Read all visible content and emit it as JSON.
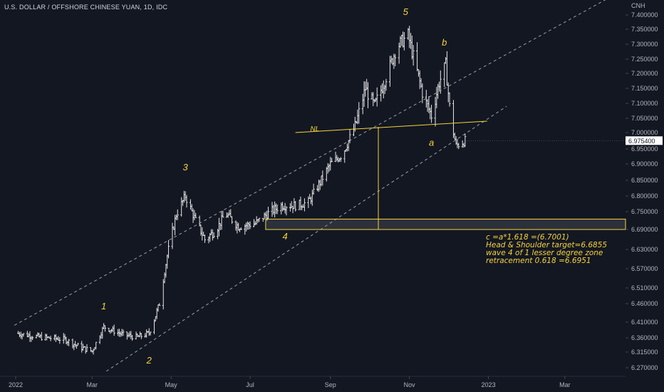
{
  "header": {
    "title": "U.S. DOLLAR / OFFSHORE CHINESE YUAN, 1D, IDC"
  },
  "axis": {
    "currency": "CNH",
    "last_price": "6.975400"
  },
  "colors": {
    "background": "#131722",
    "annotation": "#f5d33b",
    "bars": "#e6e6e6",
    "channel": "#9aa0ab"
  },
  "chart_data": {
    "type": "bar",
    "title": "U.S. DOLLAR / OFFSHORE CHINESE YUAN, 1D, IDC",
    "ylim": [
      6.24,
      7.42
    ],
    "y_ticks": [
      "7.400000",
      "7.350000",
      "7.300000",
      "7.250000",
      "7.200000",
      "7.150000",
      "7.100000",
      "7.050000",
      "7.000000",
      "6.950000",
      "6.900000",
      "6.850000",
      "6.800000",
      "6.750000",
      "6.690000",
      "6.630000",
      "6.570000",
      "6.510000",
      "6.460000",
      "6.410000",
      "6.360000",
      "6.315000",
      "6.270000"
    ],
    "x_ticks": [
      "2022",
      "Mar",
      "May",
      "Jul",
      "Sep",
      "Nov",
      "2023",
      "Mar"
    ],
    "price_path": [
      [
        "2022-01-01",
        6.375
      ],
      [
        "2022-01-20",
        6.362
      ],
      [
        "2022-02-08",
        6.355
      ],
      [
        "2022-02-20",
        6.33
      ],
      [
        "2022-03-01",
        6.318
      ],
      [
        "2022-03-10",
        6.395
      ],
      [
        "2022-03-25",
        6.37
      ],
      [
        "2022-04-05",
        6.362
      ],
      [
        "2022-04-14",
        6.375
      ],
      [
        "2022-04-22",
        6.46
      ],
      [
        "2022-04-28",
        6.61
      ],
      [
        "2022-05-05",
        6.74
      ],
      [
        "2022-05-12",
        6.8
      ],
      [
        "2022-05-20",
        6.72
      ],
      [
        "2022-05-27",
        6.66
      ],
      [
        "2022-06-05",
        6.69
      ],
      [
        "2022-06-12",
        6.745
      ],
      [
        "2022-06-22",
        6.7
      ],
      [
        "2022-07-05",
        6.71
      ],
      [
        "2022-07-15",
        6.745
      ],
      [
        "2022-07-25",
        6.77
      ],
      [
        "2022-08-05",
        6.77
      ],
      [
        "2022-08-15",
        6.78
      ],
      [
        "2022-08-22",
        6.83
      ],
      [
        "2022-09-01",
        6.9
      ],
      [
        "2022-09-10",
        6.93
      ],
      [
        "2022-09-20",
        7.02
      ],
      [
        "2022-09-28",
        7.15
      ],
      [
        "2022-10-05",
        7.09
      ],
      [
        "2022-10-15",
        7.2
      ],
      [
        "2022-10-22",
        7.29
      ],
      [
        "2022-10-31",
        7.33
      ],
      [
        "2022-11-05",
        7.24
      ],
      [
        "2022-11-12",
        7.12
      ],
      [
        "2022-11-18",
        7.06
      ],
      [
        "2022-11-24",
        7.17
      ],
      [
        "2022-11-29",
        7.23
      ],
      [
        "2022-12-03",
        7.04
      ],
      [
        "2022-12-07",
        6.96
      ],
      [
        "2022-12-14",
        6.975
      ]
    ],
    "wave_labels": [
      {
        "label": "1",
        "date": "2022-03-10",
        "value": 6.445
      },
      {
        "label": "2",
        "date": "2022-04-14",
        "value": 6.282
      },
      {
        "label": "3",
        "date": "2022-05-12",
        "value": 6.88
      },
      {
        "label": "4",
        "date": "2022-07-28",
        "value": 6.66
      },
      {
        "label": "5",
        "date": "2022-10-29",
        "value": 7.4
      },
      {
        "label": "a",
        "date": "2022-11-18",
        "value": 6.96
      },
      {
        "label": "b",
        "date": "2022-11-28",
        "value": 7.295
      },
      {
        "label": "NL",
        "date": "2022-08-20",
        "value": 7.005
      }
    ],
    "neckline": [
      [
        "2022-08-05",
        7.0
      ],
      [
        "2022-12-31",
        7.04
      ]
    ],
    "channel_upper": [
      [
        "2021-12-31",
        6.4
      ],
      [
        "2023-05-10",
        7.55
      ]
    ],
    "channel_lower": [
      [
        "2022-03-12",
        6.26
      ],
      [
        "2023-01-15",
        7.09
      ]
    ],
    "target_line": {
      "date": "2022-10-08",
      "from": 7.02,
      "to": 6.69
    },
    "zone": {
      "from_date": "2022-07-13",
      "to_date": "2023-05-10",
      "low": 6.69,
      "high": 6.725
    },
    "notes": [
      "c =a*1.618      =(6.7001)",
      "Head & Shoulder target=6.6855",
      "wave 4 of 1 lesser degree zone",
      "retracement 0.618 =6.6951"
    ]
  }
}
